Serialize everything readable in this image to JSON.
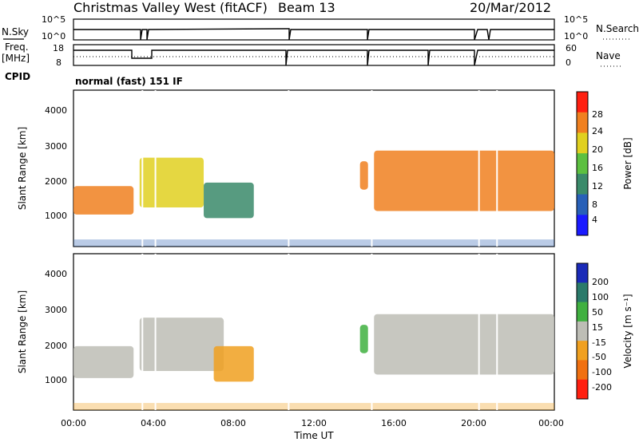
{
  "header": {
    "station": "Christmas Valley West (fitACF)",
    "beam": "Beam 13",
    "date": "20/Mar/2012"
  },
  "panels": {
    "nsky_label": "N.Sky",
    "nsky_ticks": [
      "10^5",
      "10^0"
    ],
    "nsearch_label": "N.Search",
    "nsearch_ticks": [
      "10^5",
      "10^0"
    ],
    "freq_label": "Freq.",
    "freq_unit": "[MHz]",
    "freq_ticks": [
      "18",
      "8"
    ],
    "nave_label": "Nave",
    "nave_ticks": [
      "60",
      "0"
    ],
    "cpid_label": "CPID",
    "cpid_value": "normal (fast) 151 IF"
  },
  "chart_data": [
    {
      "type": "heatmap",
      "name": "power",
      "ylabel": "Slant Range [km]",
      "yticks": [
        "1000",
        "2000",
        "3000",
        "4000"
      ],
      "ylim": [
        200,
        4600
      ],
      "xlim": [
        0,
        24
      ],
      "colorbar_label": "Power [dB]",
      "colorbar_ticks": [
        "4",
        "8",
        "12",
        "16",
        "20",
        "24",
        "28"
      ],
      "colors": [
        "#1a1aff",
        "#2860b8",
        "#3a8a6a",
        "#5cc040",
        "#e0d020",
        "#f08020",
        "#ff2010"
      ],
      "bands": [
        {
          "t0": 0.0,
          "t1": 3.0,
          "r0": 1100,
          "r1": 1900,
          "level": 5
        },
        {
          "t0": 3.3,
          "t1": 6.5,
          "r0": 1300,
          "r1": 2700,
          "level": 4
        },
        {
          "t0": 6.5,
          "t1": 9.0,
          "r0": 1000,
          "r1": 2000,
          "level": 2
        },
        {
          "t0": 14.3,
          "t1": 14.7,
          "r0": 1800,
          "r1": 2600,
          "level": 5
        },
        {
          "t0": 15.0,
          "t1": 24.0,
          "r0": 1200,
          "r1": 2900,
          "level": 5
        }
      ]
    },
    {
      "type": "heatmap",
      "name": "velocity",
      "ylabel": "Slant Range [km]",
      "xlabel": "Time UT",
      "yticks": [
        "1000",
        "2000",
        "3000",
        "4000"
      ],
      "xticks": [
        "00:00",
        "04:00",
        "08:00",
        "12:00",
        "16:00",
        "20:00",
        "00:00"
      ],
      "ylim": [
        200,
        4600
      ],
      "xlim": [
        0,
        24
      ],
      "colorbar_label": "Velocity [m s⁻¹]",
      "colorbar_ticks": [
        "200",
        "100",
        "50",
        "15",
        "-15",
        "-50",
        "-100",
        "-200"
      ],
      "colors": [
        "#1a2ab8",
        "#2a7a6a",
        "#40b040",
        "#bdbdb5",
        "#f0a020",
        "#f07010",
        "#ff2010"
      ],
      "bands": [
        {
          "t0": 0.0,
          "t1": 3.0,
          "r0": 1100,
          "r1": 2000,
          "level": 3
        },
        {
          "t0": 3.3,
          "t1": 7.5,
          "r0": 1300,
          "r1": 2800,
          "level": 3
        },
        {
          "t0": 7.0,
          "t1": 9.0,
          "r0": 1000,
          "r1": 2000,
          "level": 4
        },
        {
          "t0": 14.3,
          "t1": 14.7,
          "r0": 1800,
          "r1": 2600,
          "level": 2
        },
        {
          "t0": 15.0,
          "t1": 24.0,
          "r0": 1200,
          "r1": 2900,
          "level": 3
        }
      ]
    }
  ]
}
